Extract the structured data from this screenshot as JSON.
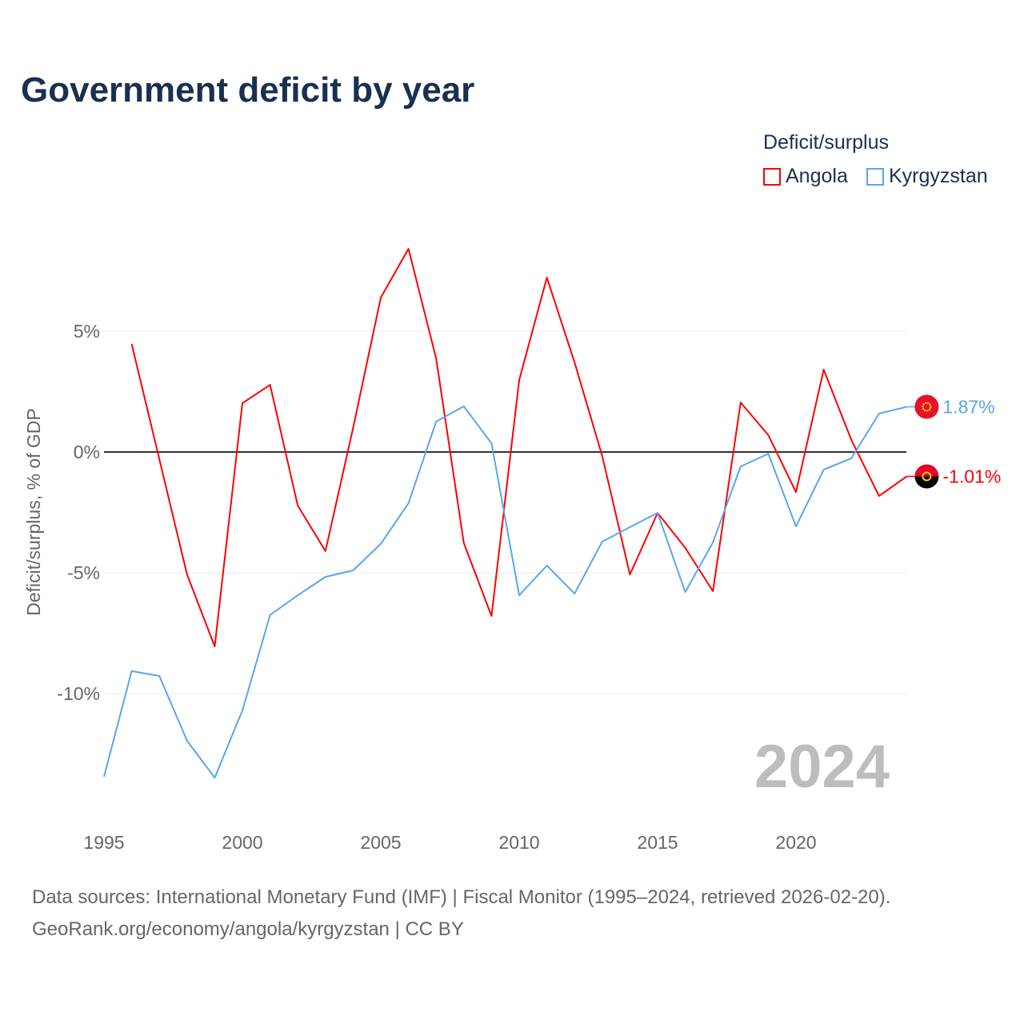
{
  "title": "Government deficit by year",
  "legend": {
    "title": "Deficit/surplus",
    "items": [
      {
        "label": "Angola",
        "color": "#ff0000"
      },
      {
        "label": "Kyrgyzstan",
        "color": "#5aa5ee"
      }
    ]
  },
  "footer": {
    "line1": "Data sources: International Monetary Fund (IMF) | Fiscal Monitor (1995–2024, retrieved 2026-02-20).",
    "line2": "GeoRank.org/economy/angola/kyrgyzstan | CC BY"
  },
  "chart_data": {
    "type": "line",
    "title": "Government deficit by year",
    "ylabel": "Deficit/surplus, % of GDP",
    "xlabel": "",
    "xlim": [
      1995,
      2024
    ],
    "ylim": [
      -14.8,
      8.8
    ],
    "xticks": [
      1995,
      2000,
      2005,
      2010,
      2015,
      2020
    ],
    "yticks": [
      {
        "v": 5,
        "label": "5%"
      },
      {
        "v": 0,
        "label": "0%"
      },
      {
        "v": -5,
        "label": "-5%"
      },
      {
        "v": -10,
        "label": "-10%"
      }
    ],
    "year_watermark": "2024",
    "series": [
      {
        "name": "Angola",
        "color": "#ff0000",
        "end_label": "-1.01%",
        "x": [
          1996,
          1997,
          1998,
          1999,
          2000,
          2001,
          2002,
          2003,
          2004,
          2005,
          2006,
          2007,
          2008,
          2009,
          2010,
          2011,
          2012,
          2013,
          2014,
          2015,
          2016,
          2017,
          2018,
          2019,
          2020,
          2021,
          2022,
          2023,
          2024
        ],
        "values": [
          4.47,
          -0.3,
          -5.07,
          -8.05,
          2.02,
          2.78,
          -2.22,
          -4.1,
          1.0,
          6.39,
          8.41,
          3.87,
          -3.77,
          -6.79,
          2.98,
          7.22,
          3.71,
          -0.17,
          -5.07,
          -2.52,
          -3.97,
          -5.76,
          2.05,
          0.7,
          -1.66,
          3.41,
          0.5,
          -1.82,
          -1.01
        ]
      },
      {
        "name": "Kyrgyzstan",
        "color": "#5aa5ee",
        "end_label": "1.87%",
        "x": [
          1995,
          1996,
          1997,
          1998,
          1999,
          2000,
          2001,
          2002,
          2003,
          2004,
          2005,
          2006,
          2007,
          2008,
          2009,
          2010,
          2011,
          2012,
          2013,
          2014,
          2015,
          2016,
          2017,
          2018,
          2019,
          2020,
          2021,
          2022,
          2023,
          2024
        ],
        "values": [
          -13.44,
          -9.07,
          -9.27,
          -11.95,
          -13.48,
          -10.7,
          -6.75,
          -5.93,
          -5.17,
          -4.9,
          -3.8,
          -2.12,
          1.26,
          1.89,
          0.36,
          -5.93,
          -4.7,
          -5.86,
          -3.71,
          -3.11,
          -2.52,
          -5.8,
          -3.74,
          -0.6,
          -0.07,
          -3.08,
          -0.73,
          -0.26,
          1.59,
          1.87
        ]
      }
    ]
  }
}
